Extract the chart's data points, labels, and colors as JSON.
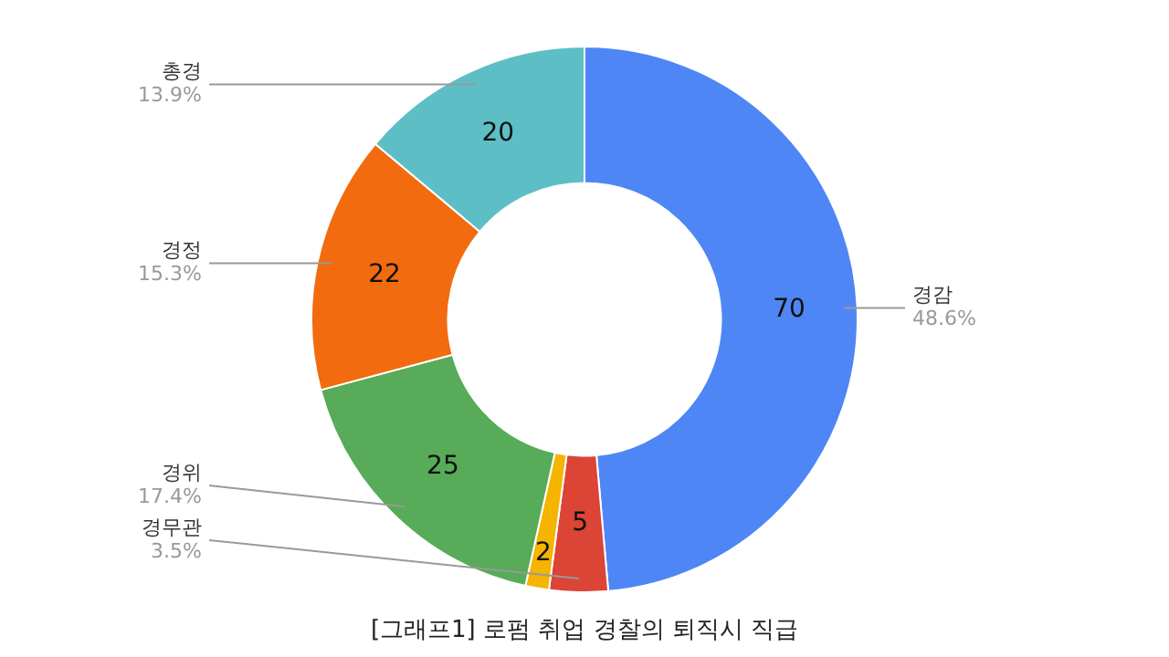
{
  "chart_data": {
    "type": "donut",
    "title": "[그래프1] 로펌 취업 경찰의 퇴직시 직급",
    "categories": [
      "경감",
      "경무관",
      null,
      "경위",
      "경정",
      "총경"
    ],
    "values": [
      70,
      5,
      2,
      25,
      22,
      20
    ],
    "colors": [
      "#4f86f5",
      "#dc4436",
      "#f5b400",
      "#58ab58",
      "#f26b0f",
      "#5dbec6"
    ],
    "data_labels": true,
    "annotations": [
      "48.6%",
      "3.5%",
      "17.4%",
      "15.3%",
      "13.9%"
    ],
    "legend": false
  }
}
